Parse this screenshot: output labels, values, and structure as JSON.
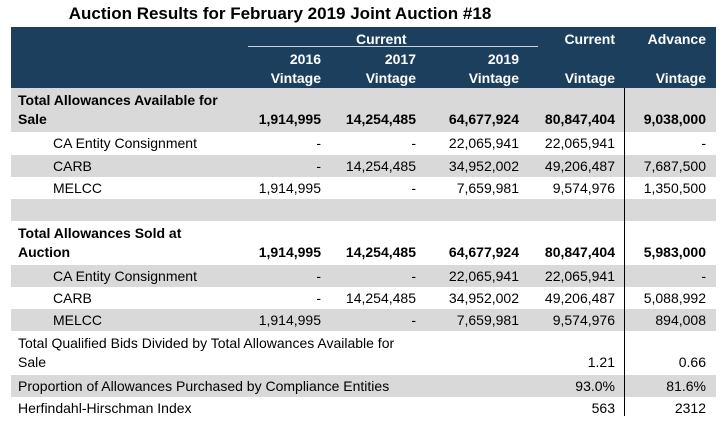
{
  "title": "Auction Results for February 2019 Joint Auction #18",
  "header": {
    "current_group": "Current",
    "col2016": [
      "2016",
      "Vintage"
    ],
    "col2017": [
      "2017",
      "Vintage"
    ],
    "col2019": [
      "2019",
      "Vintage"
    ],
    "current": [
      "Current",
      "Vintage"
    ],
    "advance": [
      "Advance",
      "Vintage"
    ]
  },
  "rows": [
    {
      "label": [
        "Total Allowances Available for",
        "Sale"
      ],
      "bold": true,
      "shade": true,
      "values": [
        "1,914,995",
        "14,254,485",
        "64,677,924",
        "80,847,404",
        "9,038,000"
      ]
    },
    {
      "label": [
        "CA Entity Consignment"
      ],
      "indent": true,
      "values": [
        "-",
        "-",
        "22,065,941",
        "22,065,941",
        "-"
      ]
    },
    {
      "label": [
        "CARB"
      ],
      "indent": true,
      "shade": true,
      "values": [
        "-",
        "14,254,485",
        "34,952,002",
        "49,206,487",
        "7,687,500"
      ]
    },
    {
      "label": [
        "MELCC"
      ],
      "indent": true,
      "values": [
        "1,914,995",
        "-",
        "7,659,981",
        "9,574,976",
        "1,350,500"
      ]
    },
    {
      "label": [
        ""
      ],
      "shade": true,
      "values": [
        "",
        "",
        "",
        "",
        ""
      ]
    },
    {
      "label": [
        "Total Allowances Sold at",
        "Auction"
      ],
      "bold": true,
      "values": [
        "1,914,995",
        "14,254,485",
        "64,677,924",
        "80,847,404",
        "5,983,000"
      ]
    },
    {
      "label": [
        "CA Entity Consignment"
      ],
      "indent": true,
      "shade": true,
      "values": [
        "-",
        "-",
        "22,065,941",
        "22,065,941",
        "-"
      ]
    },
    {
      "label": [
        "CARB"
      ],
      "indent": true,
      "values": [
        "-",
        "14,254,485",
        "34,952,002",
        "49,206,487",
        "5,088,992"
      ]
    },
    {
      "label": [
        "MELCC"
      ],
      "indent": true,
      "shade": true,
      "values": [
        "1,914,995",
        "-",
        "7,659,981",
        "9,574,976",
        "894,008"
      ]
    },
    {
      "label": [
        "Total Qualified Bids Divided by Total Allowances Available for",
        "Sale"
      ],
      "values": [
        "",
        "",
        "",
        "1.21",
        "0.66"
      ]
    },
    {
      "label": [
        "Proportion of Allowances Purchased by Compliance Entities"
      ],
      "shade": true,
      "values": [
        "",
        "",
        "",
        "93.0%",
        "81.6%"
      ]
    },
    {
      "label": [
        "Herfindahl-Hirschman Index"
      ],
      "values": [
        "",
        "",
        "",
        "563",
        "2312"
      ]
    }
  ]
}
